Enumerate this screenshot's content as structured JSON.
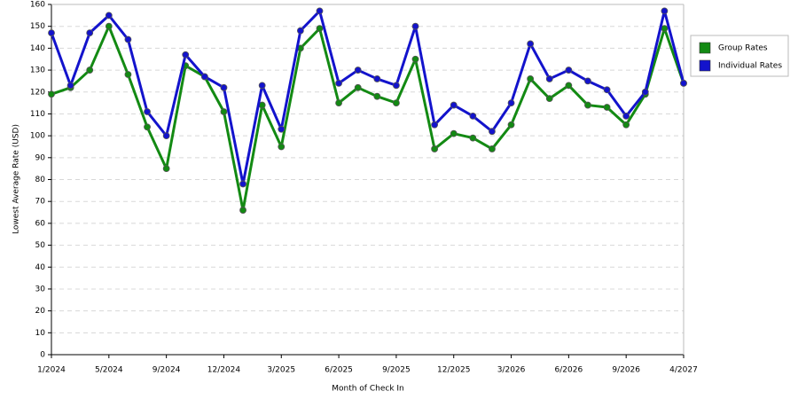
{
  "chart_data": {
    "type": "line",
    "x_label": "Month of Check In",
    "y_label": "Lowest Average Rate (USD)",
    "categories": [
      "1/2024",
      null,
      null,
      "5/2024",
      null,
      null,
      "9/2024",
      null,
      null,
      "12/2024",
      null,
      null,
      "3/2025",
      null,
      null,
      "6/2025",
      null,
      null,
      "9/2025",
      null,
      null,
      "12/2025",
      null,
      null,
      "3/2026",
      null,
      null,
      "6/2026",
      null,
      null,
      "9/2026",
      null,
      null,
      "4/2027"
    ],
    "series": [
      {
        "name": "Group Rates",
        "color": "#138a13",
        "values": [
          119,
          122,
          130,
          150,
          128,
          104,
          85,
          132,
          127,
          111,
          66,
          114,
          95,
          140,
          149,
          115,
          122,
          118,
          115,
          135,
          94,
          101,
          99,
          94,
          105,
          126,
          117,
          123,
          114,
          113,
          105,
          119,
          149,
          124
        ]
      },
      {
        "name": "Individual Rates",
        "color": "#1313cc",
        "values": [
          147,
          123,
          147,
          155,
          144,
          111,
          100,
          137,
          127,
          122,
          78,
          123,
          103,
          148,
          157,
          124,
          130,
          126,
          123,
          150,
          105,
          114,
          109,
          102,
          115,
          142,
          126,
          130,
          125,
          121,
          109,
          120,
          157,
          124
        ]
      }
    ],
    "ylim": [
      0,
      160
    ],
    "yticks": [
      0,
      10,
      20,
      30,
      40,
      50,
      60,
      70,
      80,
      90,
      100,
      110,
      120,
      130,
      140,
      150,
      160
    ],
    "grid": true,
    "legend": "right"
  }
}
